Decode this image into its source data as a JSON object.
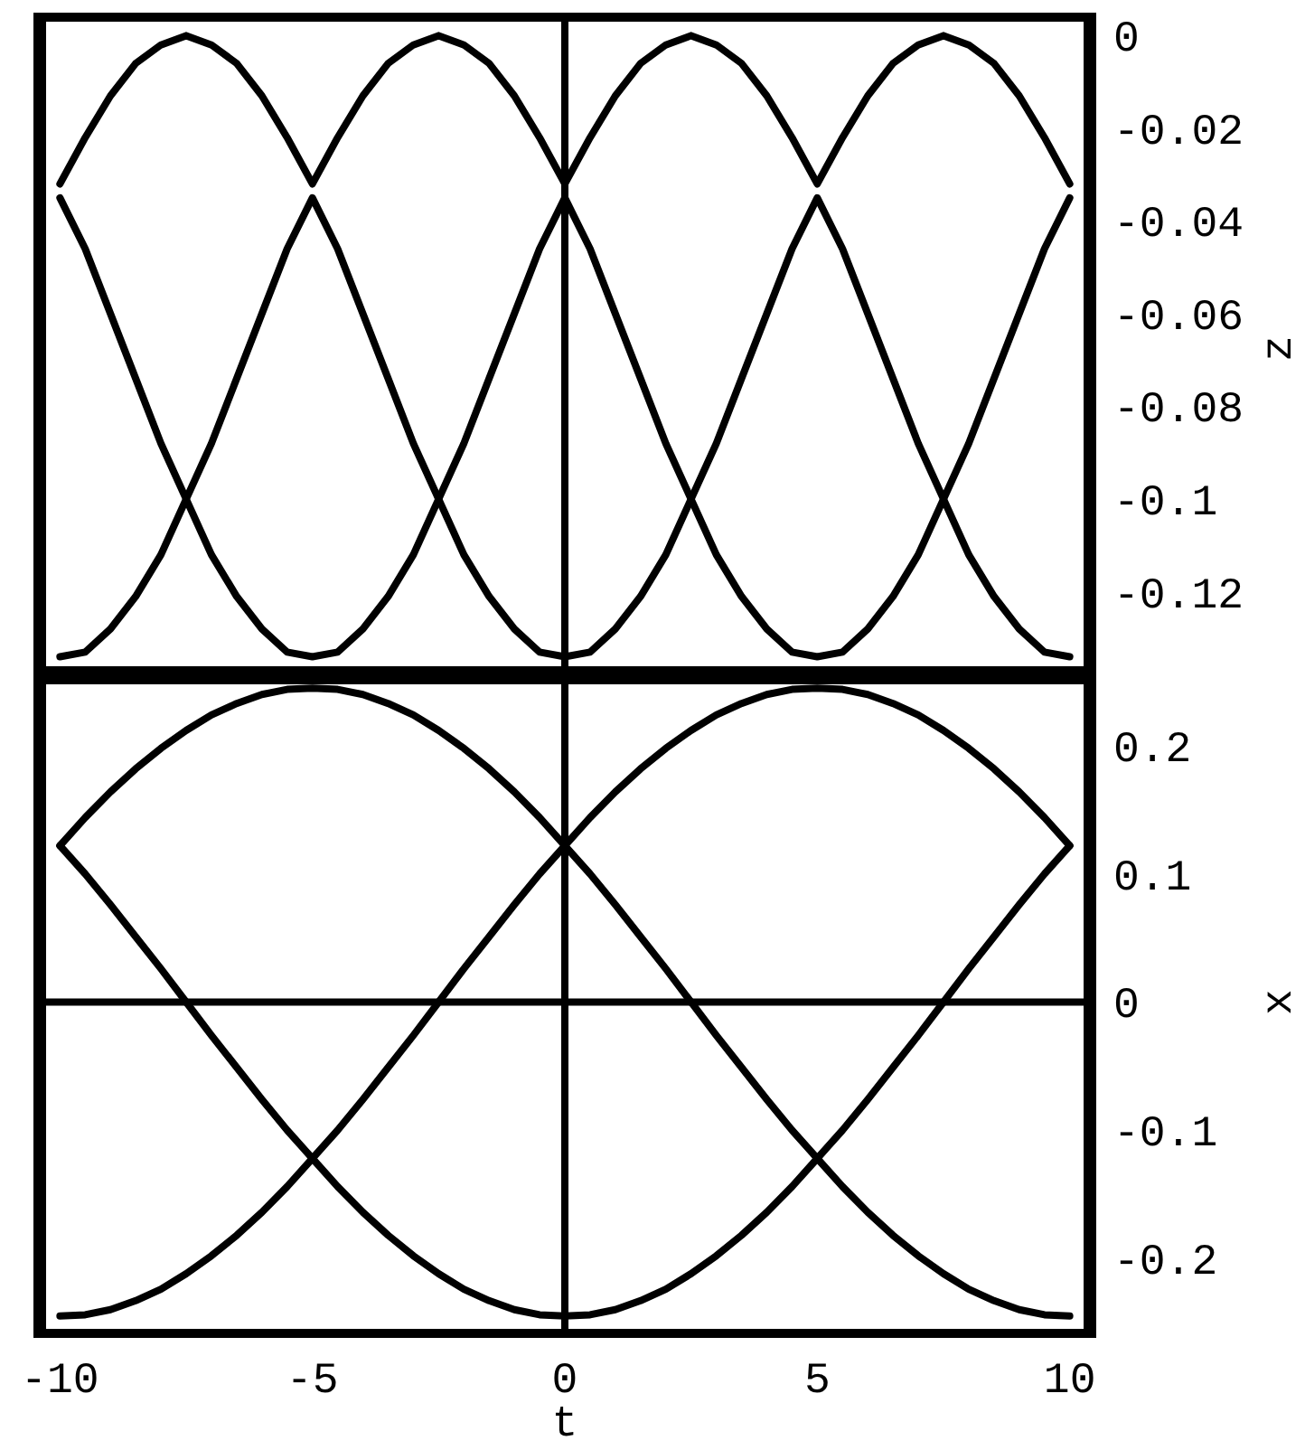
{
  "chart_data": [
    {
      "type": "line",
      "ylabel": "z",
      "x": [
        -10,
        -9.5,
        -9,
        -8.5,
        -8,
        -7.5,
        -7,
        -6.5,
        -6,
        -5.5,
        -5,
        -4.5,
        -4,
        -3.5,
        -3,
        -2.5,
        -2,
        -1.5,
        -1,
        -0.5,
        0,
        0.5,
        1,
        1.5,
        2,
        2.5,
        3,
        3.5,
        4,
        4.5,
        5,
        5.5,
        6,
        6.5,
        7,
        7.5,
        8,
        8.5,
        9,
        9.5,
        10
      ],
      "xlim": [
        -10.4,
        10.4
      ],
      "ylim": [
        -0.138,
        0.003
      ],
      "yticks": [
        -0.12,
        -0.1,
        -0.08,
        -0.06,
        -0.04,
        -0.02,
        0
      ],
      "tick_labels": "y",
      "grid": false,
      "marker": "none",
      "line_style": "solid",
      "ref_lines": [
        {
          "axis": "x",
          "value": 0,
          "color": "#000000"
        }
      ],
      "series": [
        {
          "color": "#000000",
          "values": [
            -0.032,
            -0.022,
            -0.013,
            -0.006,
            -0.002,
            0,
            -0.002,
            -0.006,
            -0.013,
            -0.022,
            -0.032,
            -0.022,
            -0.013,
            -0.006,
            -0.002,
            0,
            -0.002,
            -0.006,
            -0.013,
            -0.022,
            -0.032,
            -0.022,
            -0.013,
            -0.006,
            -0.002,
            0,
            -0.002,
            -0.006,
            -0.013,
            -0.022,
            -0.032,
            -0.022,
            -0.013,
            -0.006,
            -0.002,
            0,
            -0.002,
            -0.006,
            -0.013,
            -0.022,
            -0.032
          ]
        },
        {
          "color": "#000000",
          "values": [
            -0.035,
            -0.046,
            -0.06,
            -0.074,
            -0.088,
            -0.1,
            -0.112,
            -0.121,
            -0.128,
            -0.133,
            -0.134,
            -0.133,
            -0.128,
            -0.121,
            -0.112,
            -0.1,
            -0.088,
            -0.074,
            -0.06,
            -0.046,
            -0.035,
            -0.046,
            -0.06,
            -0.074,
            -0.088,
            -0.1,
            -0.112,
            -0.121,
            -0.128,
            -0.133,
            -0.134,
            -0.133,
            -0.128,
            -0.121,
            -0.112,
            -0.1,
            -0.088,
            -0.074,
            -0.06,
            -0.046,
            -0.035
          ]
        },
        {
          "color": "#000000",
          "values": [
            -0.134,
            -0.133,
            -0.128,
            -0.121,
            -0.112,
            -0.1,
            -0.088,
            -0.074,
            -0.06,
            -0.046,
            -0.035,
            -0.046,
            -0.06,
            -0.074,
            -0.088,
            -0.1,
            -0.112,
            -0.121,
            -0.128,
            -0.133,
            -0.134,
            -0.133,
            -0.128,
            -0.121,
            -0.112,
            -0.1,
            -0.088,
            -0.074,
            -0.06,
            -0.046,
            -0.035,
            -0.046,
            -0.06,
            -0.074,
            -0.088,
            -0.1,
            -0.112,
            -0.121,
            -0.128,
            -0.133,
            -0.134
          ]
        }
      ]
    },
    {
      "type": "line",
      "xlabel": "t",
      "ylabel": "x",
      "x": [
        -10,
        -9.5,
        -9,
        -8.5,
        -8,
        -7.5,
        -7,
        -6.5,
        -6,
        -5.5,
        -5,
        -4.5,
        -4,
        -3.5,
        -3,
        -2.5,
        -2,
        -1.5,
        -1,
        -0.5,
        0,
        0.5,
        1,
        1.5,
        2,
        2.5,
        3,
        3.5,
        4,
        4.5,
        5,
        5.5,
        6,
        6.5,
        7,
        7.5,
        8,
        8.5,
        9,
        9.5,
        10
      ],
      "xlim": [
        -10.4,
        10.4
      ],
      "xticks": [
        -10,
        -5,
        0,
        5,
        10
      ],
      "ylim": [
        -0.255,
        0.255
      ],
      "yticks": [
        -0.2,
        -0.1,
        0,
        0.1,
        0.2
      ],
      "grid": false,
      "marker": "none",
      "line_style": "solid",
      "ref_lines": [
        {
          "axis": "x",
          "value": 0,
          "color": "#000000"
        },
        {
          "axis": "y",
          "value": 0,
          "color": "#000000"
        }
      ],
      "series": [
        {
          "color": "#000000",
          "values": [
            0.122,
            0.144,
            0.164,
            0.182,
            0.198,
            0.212,
            0.224,
            0.233,
            0.24,
            0.244,
            0.245,
            0.244,
            0.24,
            0.233,
            0.224,
            0.212,
            0.198,
            0.182,
            0.164,
            0.144,
            0.122,
            0.1,
            0.076,
            0.051,
            0.026,
            0,
            -0.026,
            -0.051,
            -0.076,
            -0.1,
            -0.122,
            -0.144,
            -0.164,
            -0.182,
            -0.198,
            -0.212,
            -0.224,
            -0.233,
            -0.24,
            -0.244,
            -0.245
          ]
        },
        {
          "color": "#000000",
          "values": [
            -0.245,
            -0.244,
            -0.24,
            -0.233,
            -0.224,
            -0.212,
            -0.198,
            -0.182,
            -0.164,
            -0.144,
            -0.122,
            -0.1,
            -0.076,
            -0.051,
            -0.026,
            0,
            0.026,
            0.051,
            0.076,
            0.1,
            0.122,
            0.144,
            0.164,
            0.182,
            0.198,
            0.212,
            0.224,
            0.233,
            0.24,
            0.244,
            0.245,
            0.244,
            0.24,
            0.233,
            0.224,
            0.212,
            0.198,
            0.182,
            0.164,
            0.144,
            0.122
          ]
        },
        {
          "color": "#000000",
          "values": [
            0.122,
            0.1,
            0.076,
            0.051,
            0.026,
            0,
            -0.026,
            -0.051,
            -0.076,
            -0.1,
            -0.122,
            -0.144,
            -0.164,
            -0.182,
            -0.198,
            -0.212,
            -0.224,
            -0.233,
            -0.24,
            -0.244,
            -0.245,
            -0.244,
            -0.24,
            -0.233,
            -0.224,
            -0.212,
            -0.198,
            -0.182,
            -0.164,
            -0.144,
            -0.122,
            -0.1,
            -0.076,
            -0.051,
            -0.026,
            0,
            0.026,
            0.051,
            0.076,
            0.1,
            0.122
          ]
        }
      ]
    }
  ]
}
